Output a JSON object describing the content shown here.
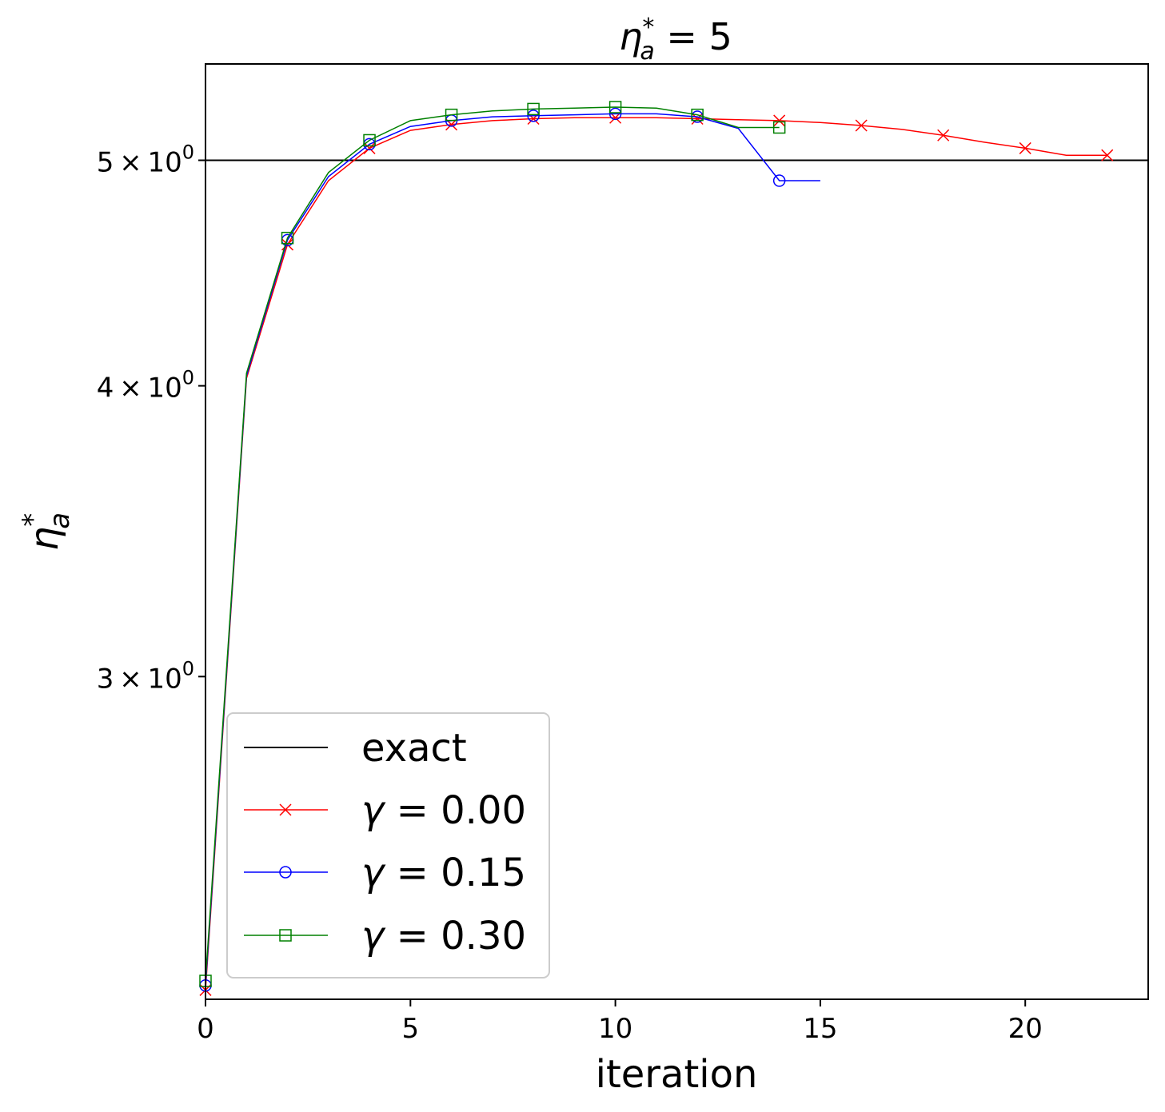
{
  "chart_data": {
    "type": "line",
    "title": {
      "eta": "η",
      "sup": "*",
      "sub": "a",
      "rest": " = 5"
    },
    "xlabel": "iteration",
    "ylabel": {
      "eta": "η",
      "sup": "*",
      "sub": "a"
    },
    "xlim": [
      0,
      23
    ],
    "ylim": [
      2.18,
      5.5
    ],
    "yscale": "log",
    "xticks": [
      0,
      5,
      10,
      15,
      20
    ],
    "yticks": [
      {
        "value": 3,
        "mant": "3",
        "times": "×",
        "base": "10",
        "exp": "0"
      },
      {
        "value": 4,
        "mant": "4",
        "times": "×",
        "base": "10",
        "exp": "0"
      },
      {
        "value": 5,
        "mant": "5",
        "times": "×",
        "base": "10",
        "exp": "0"
      }
    ],
    "reference": {
      "name": "exact",
      "value": 5,
      "color": "#000000"
    },
    "legend_position": "lower-left",
    "series": [
      {
        "gamma": "0.00",
        "color": "#ff0000",
        "marker": "x",
        "marker_every": 2,
        "x": [
          0,
          1,
          2,
          3,
          4,
          5,
          6,
          7,
          8,
          9,
          10,
          11,
          12,
          13,
          14,
          15,
          16,
          17,
          18,
          19,
          20,
          21,
          22
        ],
        "y": [
          2.2,
          4.03,
          4.6,
          4.9,
          5.06,
          5.15,
          5.18,
          5.2,
          5.21,
          5.215,
          5.215,
          5.215,
          5.21,
          5.205,
          5.2,
          5.19,
          5.175,
          5.155,
          5.125,
          5.09,
          5.06,
          5.025,
          5.025
        ]
      },
      {
        "gamma": "0.15",
        "color": "#0000ff",
        "marker": "o",
        "marker_every": 2,
        "x": [
          0,
          1,
          2,
          3,
          4,
          5,
          6,
          7,
          8,
          9,
          10,
          11,
          12,
          13,
          14,
          15
        ],
        "y": [
          2.21,
          4.04,
          4.62,
          4.92,
          5.08,
          5.17,
          5.2,
          5.22,
          5.225,
          5.23,
          5.235,
          5.235,
          5.22,
          5.16,
          4.9,
          4.9
        ]
      },
      {
        "gamma": "0.30",
        "color": "#008000",
        "marker": "s",
        "marker_every": 2,
        "x": [
          0,
          1,
          2,
          3,
          4,
          5,
          6,
          7,
          8,
          9,
          10,
          11,
          12,
          13,
          14
        ],
        "y": [
          2.22,
          4.05,
          4.63,
          4.94,
          5.1,
          5.2,
          5.23,
          5.25,
          5.26,
          5.265,
          5.27,
          5.265,
          5.23,
          5.165,
          5.165
        ]
      }
    ],
    "legend": {
      "exact_label": "exact",
      "gamma_symbol": "γ",
      "equals": " = "
    }
  }
}
